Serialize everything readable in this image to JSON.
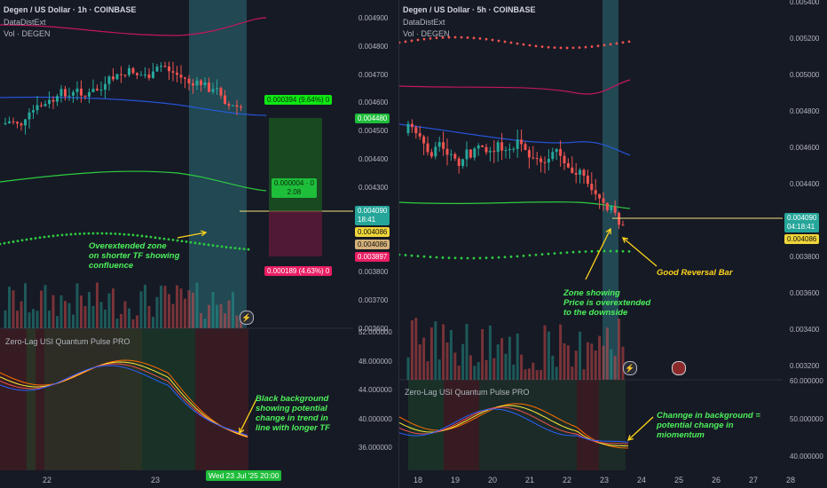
{
  "left": {
    "title": "Degen / US Dollar · 1h · COINBASE",
    "indicator1": "DataDistExt",
    "indicator2": "Vol · DEGEN",
    "price_levels": [
      "0.004900",
      "0.004800",
      "0.004700",
      "0.004600",
      "0.004500",
      "0.004400",
      "0.004300",
      "0.004200",
      "0.004100",
      "0.003800",
      "0.003700",
      "0.003600"
    ],
    "badges": {
      "target": "0.000394 (9.64%) 0",
      "target_price": "0.004480",
      "ratio_line1": "0.000004 · 0",
      "ratio_line2": "2.08",
      "stop": "0.000189 (4.63%) 0",
      "current": "0.004090",
      "countdown": "18:41",
      "level_a": "0.004086",
      "level_b": "0.004086",
      "level_c": "0.003897"
    },
    "annotation_zone": "Overextended zone\non shorter TF showing\nconfluence",
    "annotation_bg": "Black background\nshowing potential\nchange in trend in\nline with longer TF",
    "osc_title": "Zero-Lag USI Quantum Pulse PRO",
    "osc_levels": [
      "52.000000",
      "48.000000",
      "44.000000",
      "40.000000",
      "36.000000"
    ],
    "time_labels": [
      "22",
      "23"
    ],
    "crosshair_time": "Wed 23 Jul '25   20:00"
  },
  "right": {
    "title": "Degen / US Dollar · 5h · COINBASE",
    "indicator1": "DataDistExt",
    "indicator2": "Vol · DEGEN",
    "price_levels": [
      "0.005400",
      "0.005200",
      "0.005000",
      "0.004800",
      "0.004600",
      "0.004400",
      "0.004200",
      "0.003800",
      "0.003600",
      "0.003400",
      "0.003200"
    ],
    "badges": {
      "current": "0.004090",
      "countdown": "04:18:41",
      "level": "0.004086"
    },
    "annotation_zone": "Zone showing\nPrice is overextended\nto the downside",
    "annotation_bar": "Good Reversal Bar",
    "annotation_bg": "Channge in background =\npotential change in\nmiomentum",
    "osc_title": "Zero-Lag USI Quantum Pulse PRO",
    "osc_levels": [
      "60.000000",
      "50.000000",
      "40.000000"
    ],
    "time_labels": [
      "18",
      "19",
      "20",
      "21",
      "22",
      "23",
      "24",
      "25",
      "26",
      "27",
      "28"
    ]
  },
  "colors": {
    "bg": "#161a25",
    "up": "#26a69a",
    "down": "#ef5350",
    "highlight": "#2b6f7a",
    "annotation_green": "#4cf05a",
    "annotation_yellow": "#ffd41c"
  }
}
